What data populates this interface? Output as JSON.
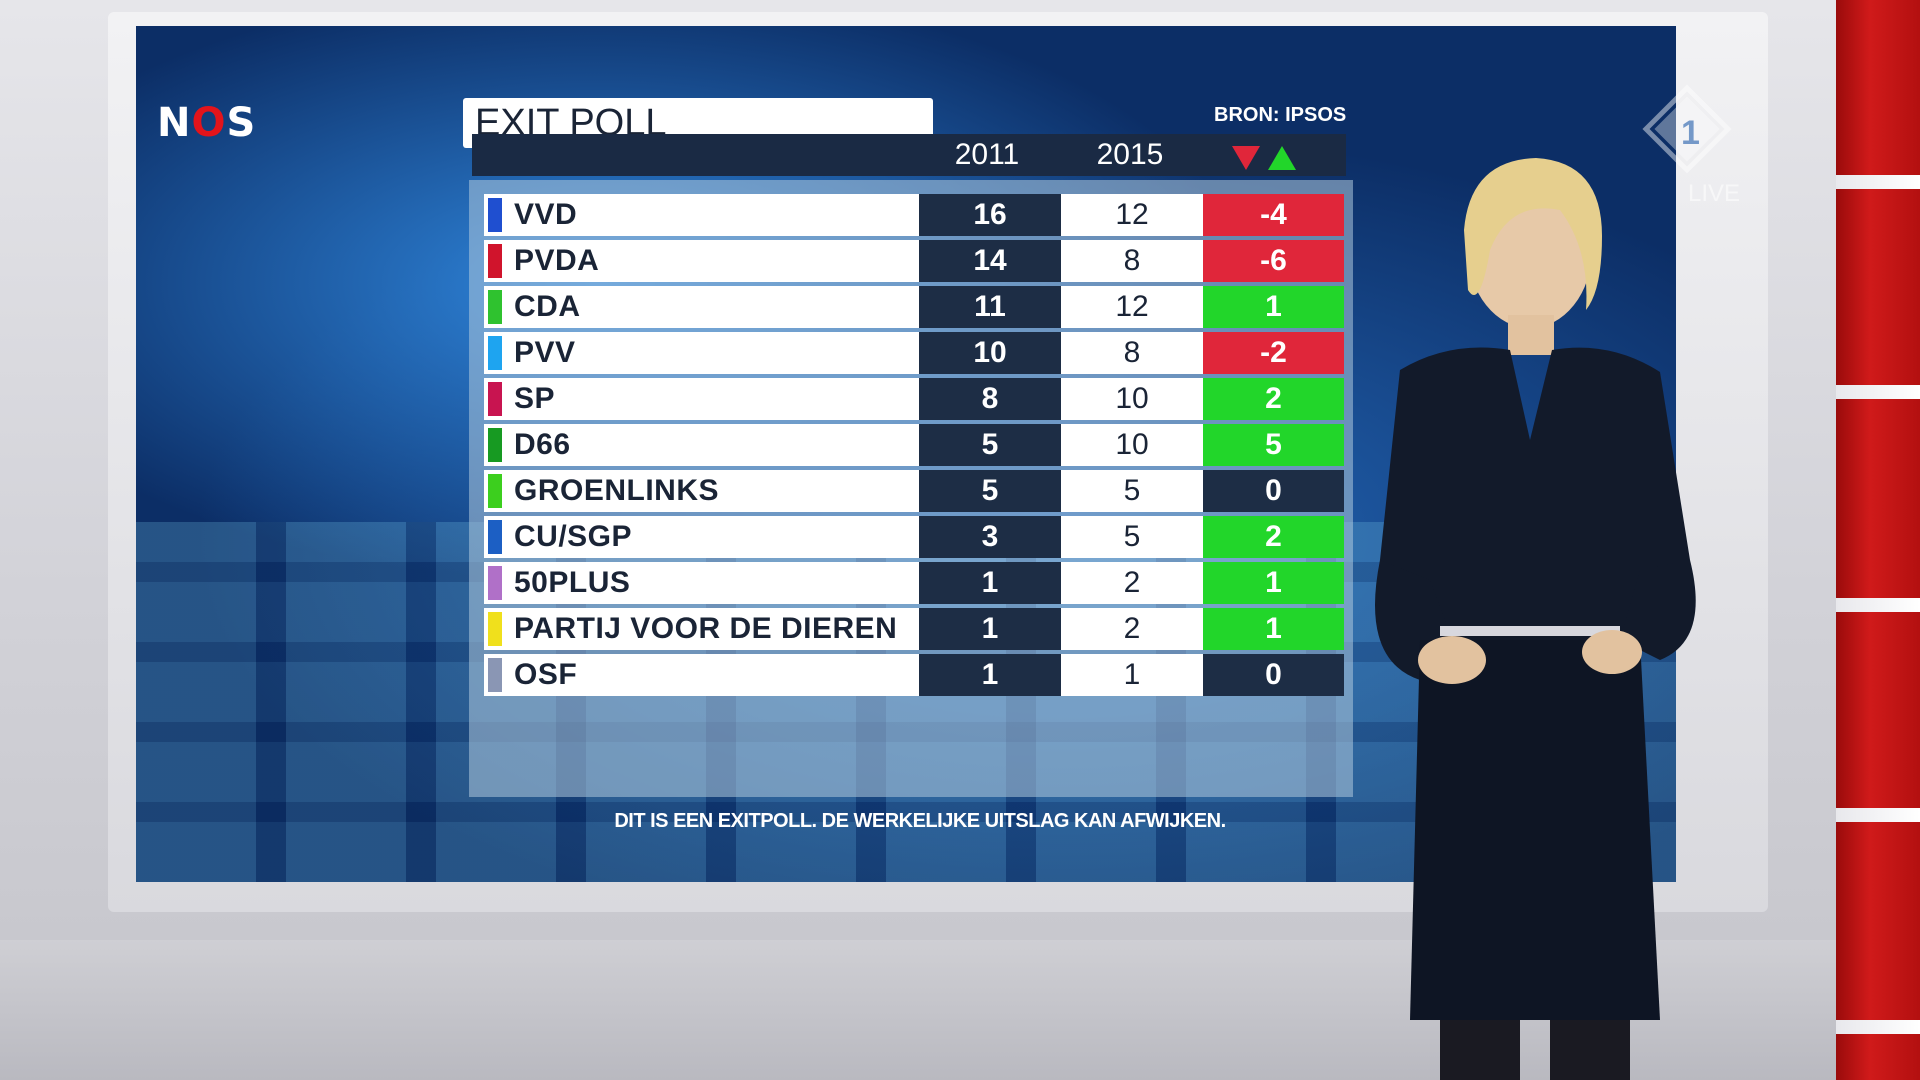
{
  "broadcaster_logo": {
    "prefix": "N",
    "middle": "O",
    "suffix": "S"
  },
  "title": "EXIT POLL",
  "source": "BRON: IPSOS",
  "columns": {
    "year_a": "2011",
    "year_b": "2015"
  },
  "colors": {
    "negative": "#e0263a",
    "positive": "#22d62a",
    "neutral": "#1d2d45",
    "header": "#1a2a44"
  },
  "parties": [
    {
      "name": "VVD",
      "color": "#1f4fd0",
      "seats_2011": "16",
      "seats_2015": "12",
      "diff": "-4",
      "trend": "negative"
    },
    {
      "name": "PVDA",
      "color": "#d0142c",
      "seats_2011": "14",
      "seats_2015": "8",
      "diff": "-6",
      "trend": "negative"
    },
    {
      "name": "CDA",
      "color": "#2fc22f",
      "seats_2011": "11",
      "seats_2015": "12",
      "diff": "1",
      "trend": "positive"
    },
    {
      "name": "PVV",
      "color": "#1ea4f0",
      "seats_2011": "10",
      "seats_2015": "8",
      "diff": "-2",
      "trend": "negative"
    },
    {
      "name": "SP",
      "color": "#c81450",
      "seats_2011": "8",
      "seats_2015": "10",
      "diff": "2",
      "trend": "positive"
    },
    {
      "name": "D66",
      "color": "#179a22",
      "seats_2011": "5",
      "seats_2015": "10",
      "diff": "5",
      "trend": "positive"
    },
    {
      "name": "GROENLINKS",
      "color": "#3ccf1e",
      "seats_2011": "5",
      "seats_2015": "5",
      "diff": "0",
      "trend": "neutral"
    },
    {
      "name": "CU/SGP",
      "color": "#1c5fc4",
      "seats_2011": "3",
      "seats_2015": "5",
      "diff": "2",
      "trend": "positive"
    },
    {
      "name": "50PLUS",
      "color": "#b070c8",
      "seats_2011": "1",
      "seats_2015": "2",
      "diff": "1",
      "trend": "positive"
    },
    {
      "name": "PARTIJ VOOR DE DIEREN",
      "color": "#f0e01c",
      "seats_2011": "1",
      "seats_2015": "2",
      "diff": "1",
      "trend": "positive"
    },
    {
      "name": "OSF",
      "color": "#8a96b4",
      "seats_2011": "1",
      "seats_2015": "1",
      "diff": "0",
      "trend": "neutral"
    }
  ],
  "disclaimer": "DIT IS EEN EXITPOLL. DE WERKELIJKE UITSLAG KAN AFWIJKEN.",
  "channel_logo_icon": "npo-1-icon",
  "live_label": "LIVE"
}
